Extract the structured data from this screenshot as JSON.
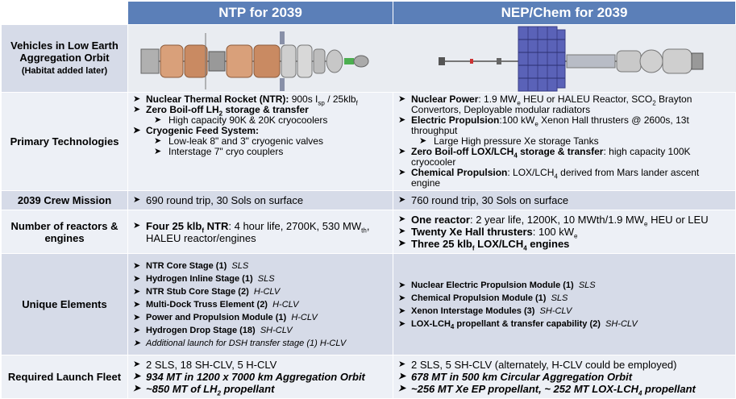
{
  "header": {
    "col1": "NTP for 2039",
    "col2": "NEP/Chem for 2039"
  },
  "rows": {
    "vehicles": {
      "label": "Vehicles in Low Earth Aggregation Orbit",
      "sub": "(Habitat added later)"
    },
    "primary": {
      "label": "Primary Technologies"
    },
    "crew": {
      "label": "2039 Crew Mission"
    },
    "reactors": {
      "label": "Number of reactors & engines"
    },
    "unique": {
      "label": "Unique Elements"
    },
    "launch": {
      "label": "Required Launch Fleet"
    }
  },
  "ntp": {
    "tech": {
      "ntr_b": "Nuclear Thermal Rocket (NTR): ",
      "ntr_t": "900s I",
      "ntr_sub": "sp",
      "ntr_t2": " / 25klb",
      "ntr_sub2": "f",
      "zbo_b1": "Zero Boil-off LH",
      "zbo_sub": "2",
      "zbo_b2": " storage & transfer",
      "cryo_cap": "High capacity 90K & 20K cryocoolers",
      "feed_b": "Cryogenic Feed System:",
      "valves": "Low-leak 8\" and 3\" cryogenic valves",
      "couplers": "Interstage 7\" cryo couplers"
    },
    "crew": "690 round trip, 30 Sols on surface",
    "reactors": {
      "b1": "Four 25 klb",
      "bsub": "f",
      "b2": " NTR",
      "t1": ": 4 hour life, 2700K, 530 MW",
      "tsub": "th",
      "t2": ",",
      "t3": "HALEU reactor/engines"
    },
    "unique": [
      {
        "name": "NTR Core Stage (1)",
        "veh": "SLS"
      },
      {
        "name": "Hydrogen Inline Stage (1)",
        "veh": "SLS"
      },
      {
        "name": "NTR Stub Core Stage (2)",
        "veh": "H-CLV"
      },
      {
        "name": "Multi-Dock Truss Element (2)",
        "veh": "H-CLV"
      },
      {
        "name": "Power and Propulsion Module (1)",
        "veh": "H-CLV"
      },
      {
        "name": "Hydrogen Drop Stage (18)",
        "veh": "SH-CLV"
      }
    ],
    "unique_extra": "Additional launch for DSH transfer stage (1) H-CLV",
    "launch": {
      "l1": "2 SLS, 18 SH-CLV, 5 H-CLV",
      "l2": "934 MT in 1200 x 7000 km Aggregation Orbit",
      "l3a": "~850 MT of LH",
      "l3sub": "2",
      "l3b": " propellant"
    }
  },
  "nep": {
    "tech": {
      "np_b": "Nuclear Power",
      "np_t1": ": 1.9 MW",
      "np_sub": "e",
      "np_t2": " HEU or HALEU Reactor, SCO",
      "np_sub2": "2",
      "np_t3": " Brayton",
      "np_t4": "Convertors, Deployable modular radiators",
      "ep_b": "Electric Propulsion",
      "ep_t1": ":100 kW",
      "ep_sub": "e",
      "ep_t2": " Xenon Hall thrusters @ 2600s, 13t throughput",
      "xe_tanks": "Large High pressure Xe storage Tanks",
      "zbo_b": "Zero Boil-off LOX/LCH",
      "zbo_sub": "4",
      "zbo_b2": " storage & transfer",
      "zbo_t": ": high capacity 100K cryocooler",
      "cp_b": "Chemical Propulsion",
      "cp_t1": ": LOX/LCH",
      "cp_sub": "4",
      "cp_t2": " derived from Mars lander ascent engine"
    },
    "crew": "760 round trip, 30 Sols on surface",
    "reactors": {
      "r1b": "One reactor",
      "r1t1": ": 2 year life, 1200K, 10 MWth/1.9 MW",
      "r1sub": "e",
      "r1t2": " HEU or LEU",
      "r2b": "Twenty Xe Hall thrusters",
      "r2t": ": 100 kW",
      "r2sub": "e",
      "r3b1": "Three 25 klb",
      "r3sub": "f",
      "r3b2": " LOX/LCH",
      "r3sub2": "4",
      "r3b3": " engines"
    },
    "unique": [
      {
        "name": "Nuclear Electric Propulsion Module (1)",
        "veh": "SLS"
      },
      {
        "name": "Chemical Propulsion Module (1)",
        "veh": "SLS"
      },
      {
        "name": "Xenon Interstage Modules (3)",
        "veh": "SH-CLV"
      }
    ],
    "unique_lox": {
      "a": "LOX-LCH",
      "sub": "4",
      "b": " propellant & transfer capability (2)",
      "veh": "SH-CLV"
    },
    "launch": {
      "l1": "2 SLS, 5 SH-CLV (alternately, H-CLV could be employed)",
      "l2": "678 MT in 500 km Circular Aggregation Orbit",
      "l3": "~256 MT Xe EP propellant, ~ 252 MT LOX-LCH",
      "l3sub": "4",
      "l3b": " propellant"
    }
  }
}
